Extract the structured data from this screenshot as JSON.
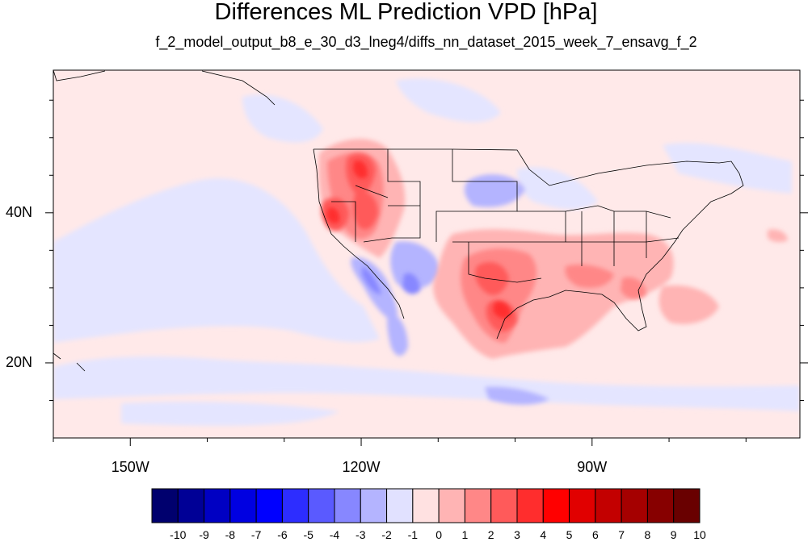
{
  "title": "Differences ML Prediction VPD [hPa]",
  "subtitle": "f_2_model_output_b8_e_30_d3_lneg4/diffs_nn_dataset_2015_week_7_ensavg_f_2",
  "map": {
    "lon_range": [
      -160,
      -63
    ],
    "lat_range": [
      10,
      59
    ],
    "lon_ticks": [
      {
        "value": -150,
        "label": "150W"
      },
      {
        "value": -120,
        "label": "120W"
      },
      {
        "value": -90,
        "label": "90W"
      }
    ],
    "lat_ticks": [
      {
        "value": 40,
        "label": "40N"
      },
      {
        "value": 20,
        "label": "20N"
      }
    ]
  },
  "colorbar": {
    "labels": [
      "-10",
      "-9",
      "-8",
      "-7",
      "-6",
      "-5",
      "-4",
      "-3",
      "-2",
      "-1",
      "0",
      "1",
      "2",
      "3",
      "4",
      "5",
      "6",
      "7",
      "8",
      "9",
      "10"
    ],
    "colors": [
      "#00006e",
      "#000096",
      "#0000c3",
      "#0000e1",
      "#0000ff",
      "#2d2dff",
      "#5a5aff",
      "#8787ff",
      "#b4b4ff",
      "#e1e1ff",
      "#ffe1e1",
      "#ffb4b4",
      "#ff8787",
      "#ff5a5a",
      "#ff2d2d",
      "#ff0000",
      "#e10000",
      "#c30000",
      "#a50000",
      "#870000",
      "#690000"
    ]
  },
  "colors": {
    "background_field": "#ffe9e9",
    "light_blue_field": "#e4e5ff"
  }
}
